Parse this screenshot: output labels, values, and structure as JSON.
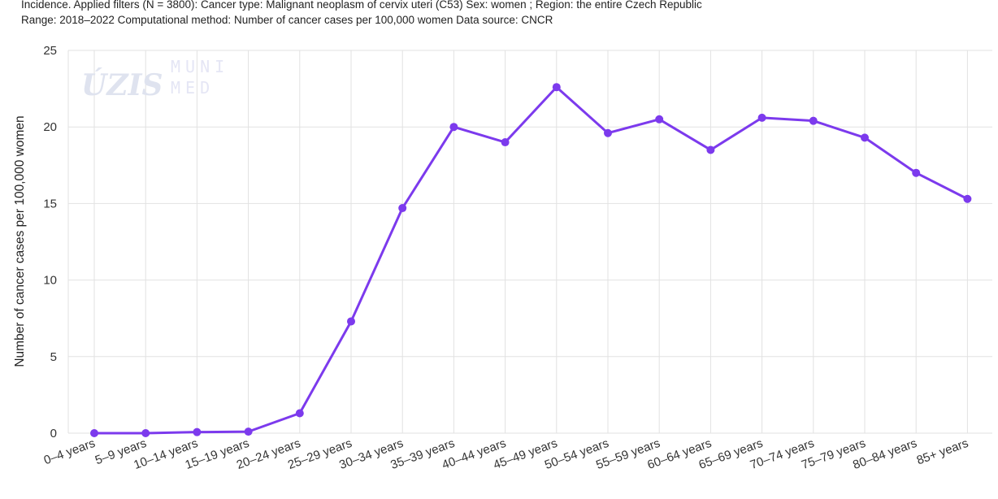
{
  "header": {
    "line1": "Incidence. Applied filters (N = 3800): Cancer type: Malignant neoplasm of cervix uteri (C53) Sex: women ; Region: the entire Czech Republic",
    "line2": "Range: 2018–2022 Computational method: Number of cancer cases per 100,000 women Data source: CNCR"
  },
  "watermark": {
    "left_text": "ÚZIS",
    "right_line1": "MUNI",
    "right_line2": "MED"
  },
  "chart_data": {
    "type": "line",
    "title": "",
    "xlabel": "",
    "ylabel": "Number of cancer cases per 100,000 women",
    "ylim": [
      0,
      25
    ],
    "yticks": [
      0,
      5,
      10,
      15,
      20,
      25
    ],
    "grid": true,
    "legend": "none",
    "color": "#7c3aed",
    "categories": [
      "0–4 years",
      "5–9 years",
      "10–14 years",
      "15–19 years",
      "20–24 years",
      "25–29 years",
      "30–34 years",
      "35–39 years",
      "40–44 years",
      "45–49 years",
      "50–54 years",
      "55–59 years",
      "60–64 years",
      "65–69 years",
      "70–74 years",
      "75–79 years",
      "80–84 years",
      "85+ years"
    ],
    "values": [
      0,
      0,
      0.07,
      0.1,
      1.3,
      7.3,
      14.7,
      20.0,
      19.0,
      22.6,
      19.6,
      20.5,
      18.5,
      20.6,
      20.4,
      19.3,
      17.0,
      15.3
    ]
  }
}
